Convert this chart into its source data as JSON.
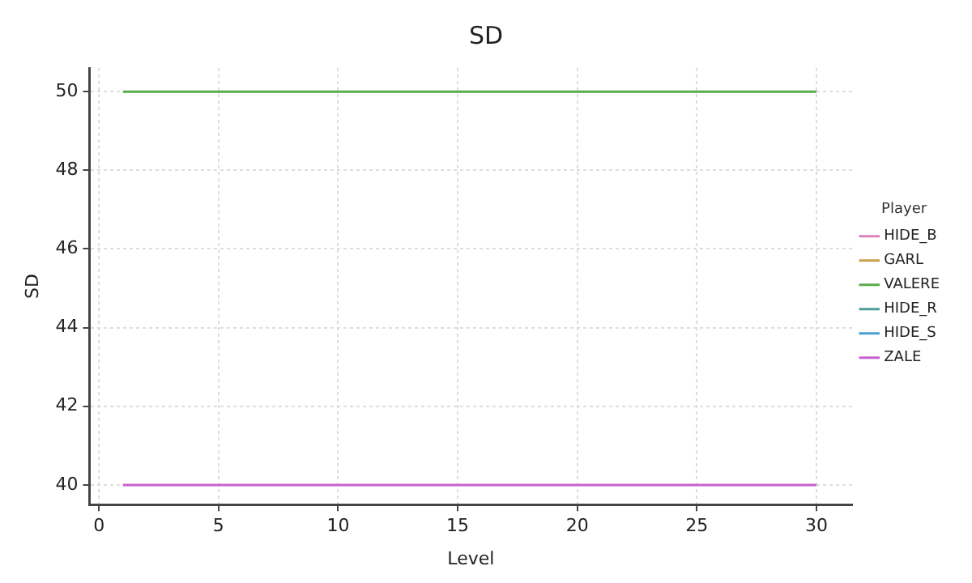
{
  "chart_data": {
    "type": "line",
    "title": "SD",
    "xlabel": "Level",
    "ylabel": "SD",
    "legend_title": "Player",
    "x": [
      1,
      30
    ],
    "series": [
      {
        "name": "HIDE_B",
        "color": "#d884b8",
        "values": [
          null,
          null
        ]
      },
      {
        "name": "GARL",
        "color": "#c8a24a",
        "values": [
          null,
          null
        ]
      },
      {
        "name": "VALERE",
        "color": "#5aab4a",
        "values": [
          50,
          50
        ]
      },
      {
        "name": "HIDE_R",
        "color": "#4c9e9a",
        "values": [
          null,
          null
        ]
      },
      {
        "name": "HIDE_S",
        "color": "#4a9fd0",
        "values": [
          null,
          null
        ]
      },
      {
        "name": "ZALE",
        "color": "#c860d0",
        "values": [
          40,
          40
        ]
      }
    ],
    "xlim": [
      -0.4,
      31.5
    ],
    "xticks": [
      0,
      5,
      10,
      15,
      20,
      25,
      30
    ],
    "ylim": [
      39.5,
      50.6
    ],
    "yticks": [
      40,
      42,
      44,
      46,
      48,
      50
    ],
    "grid": true,
    "legend": "right",
    "marker": "none",
    "line_style": "solid"
  }
}
